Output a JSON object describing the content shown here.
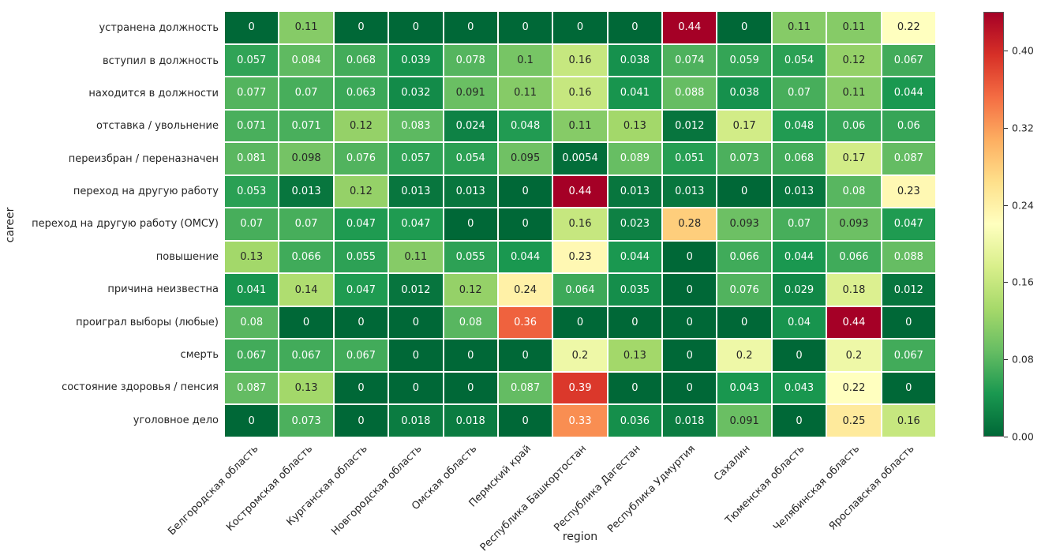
{
  "chart_data": {
    "type": "heatmap",
    "xlabel": "region",
    "ylabel": "career",
    "colormap": "RdYlGn_r",
    "vmin": 0,
    "vmax": 0.44,
    "grid": "off",
    "legend_position": "colorbar-right",
    "colorbar_tick_labels": [
      "0.00",
      "0.08",
      "0.16",
      "0.24",
      "0.32",
      "0.40"
    ],
    "rows": [
      "устранена должность",
      "вступил в должность",
      "находится в должности",
      "отставка / увольнение",
      "переизбран / переназначен",
      "переход на другую работу",
      "переход на другую работу (ОМСУ)",
      "повышение",
      "причина неизвестна",
      "проиграл выборы (любые)",
      "смерть",
      "состояние здоровья / пенсия",
      "уголовное дело"
    ],
    "columns": [
      "Белгородская область",
      "Костромская область",
      "Курганская область",
      "Новгородская область",
      "Омская область",
      "Пермский край",
      "Республика Башкортостан",
      "Республика Дагестан",
      "Республика Удмуртия",
      "Сахалин",
      "Тюменская область",
      "Челябинская область",
      "Ярославская область"
    ],
    "values": [
      [
        0,
        0.11,
        0,
        0,
        0,
        0,
        0,
        0,
        0.44,
        0,
        0.11,
        0.11,
        0.22
      ],
      [
        0.057,
        0.084,
        0.068,
        0.039,
        0.078,
        0.1,
        0.16,
        0.038,
        0.074,
        0.059,
        0.054,
        0.12,
        0.067
      ],
      [
        0.077,
        0.07,
        0.063,
        0.032,
        0.091,
        0.11,
        0.16,
        0.041,
        0.088,
        0.038,
        0.07,
        0.11,
        0.044
      ],
      [
        0.071,
        0.071,
        0.12,
        0.083,
        0.024,
        0.048,
        0.11,
        0.13,
        0.012,
        0.17,
        0.048,
        0.06,
        0.06
      ],
      [
        0.081,
        0.098,
        0.076,
        0.057,
        0.054,
        0.095,
        0.0054,
        0.089,
        0.051,
        0.073,
        0.068,
        0.17,
        0.087
      ],
      [
        0.053,
        0.013,
        0.12,
        0.013,
        0.013,
        0,
        0.44,
        0.013,
        0.013,
        0,
        0.013,
        0.08,
        0.23
      ],
      [
        0.07,
        0.07,
        0.047,
        0.047,
        0,
        0,
        0.16,
        0.023,
        0.28,
        0.093,
        0.07,
        0.093,
        0.047
      ],
      [
        0.13,
        0.066,
        0.055,
        0.11,
        0.055,
        0.044,
        0.23,
        0.044,
        0,
        0.066,
        0.044,
        0.066,
        0.088
      ],
      [
        0.041,
        0.14,
        0.047,
        0.012,
        0.12,
        0.24,
        0.064,
        0.035,
        0,
        0.076,
        0.029,
        0.18,
        0.012
      ],
      [
        0.08,
        0,
        0,
        0,
        0.08,
        0.36,
        0,
        0,
        0,
        0,
        0.04,
        0.44,
        0
      ],
      [
        0.067,
        0.067,
        0.067,
        0,
        0,
        0,
        0.2,
        0.13,
        0,
        0.2,
        0,
        0.2,
        0.067
      ],
      [
        0.087,
        0.13,
        0,
        0,
        0,
        0.087,
        0.39,
        0,
        0,
        0.043,
        0.043,
        0.22,
        0
      ],
      [
        0,
        0.073,
        0,
        0.018,
        0.018,
        0,
        0.33,
        0.036,
        0.018,
        0.091,
        0,
        0.25,
        0.16
      ]
    ],
    "colormap_anchors": [
      "#a50026",
      "#d73027",
      "#f46d43",
      "#fdae61",
      "#fee08b",
      "#ffffbf",
      "#d9ef8b",
      "#a6d96a",
      "#66bd63",
      "#1a9850",
      "#006837"
    ]
  }
}
